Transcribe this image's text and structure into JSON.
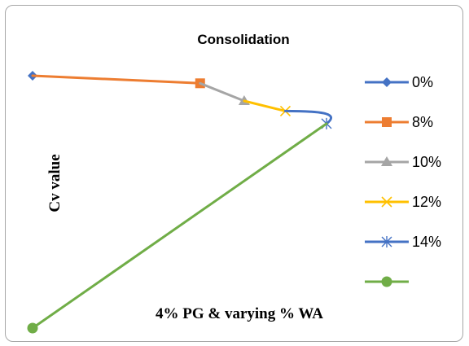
{
  "chart_data": {
    "type": "line",
    "title": "Consolidation",
    "xlabel": "4% PG & varying % WA",
    "ylabel": "Cv  value",
    "grid": false,
    "legend_position": "right",
    "series": [
      {
        "name": "0%",
        "color": "#4472c4",
        "marker": "diamond",
        "values": [
          [
            0.0,
            1.0
          ]
        ]
      },
      {
        "name": "8%",
        "color": "#ed7d31",
        "marker": "square",
        "values": [
          [
            0.0,
            1.0
          ],
          [
            0.57,
            0.97
          ]
        ]
      },
      {
        "name": "10%",
        "color": "#a5a5a5",
        "marker": "triangle",
        "values": [
          [
            0.57,
            0.97
          ],
          [
            0.72,
            0.9
          ]
        ]
      },
      {
        "name": "12%",
        "color": "#ffc000",
        "marker": "x",
        "values": [
          [
            0.72,
            0.9
          ],
          [
            0.86,
            0.86
          ]
        ]
      },
      {
        "name": "14%",
        "color": "#4472c4",
        "marker": "star",
        "values": [
          [
            0.86,
            0.86
          ],
          [
            1.0,
            0.81
          ]
        ]
      },
      {
        "name": "",
        "color": "#70ad47",
        "marker": "circle",
        "values": [
          [
            0.0,
            0.0
          ],
          [
            1.0,
            0.81
          ]
        ]
      }
    ]
  }
}
